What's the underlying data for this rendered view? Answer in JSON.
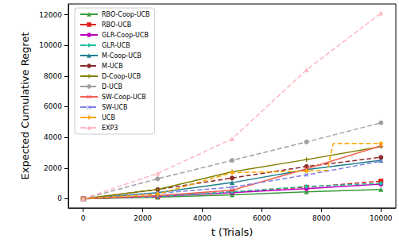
{
  "chart_data": {
    "type": "line",
    "x_label": "t (Trials)",
    "y_label": "Expected Cumulative Regret",
    "x": [
      0,
      2500,
      5000,
      7500,
      10000
    ],
    "xlim": [
      -500,
      10500
    ],
    "xticks": [
      0,
      2000,
      4000,
      6000,
      8000,
      10000
    ],
    "ylim": [
      -600,
      12700
    ],
    "yticks": [
      0,
      2000,
      4000,
      6000,
      8000,
      10000,
      12000
    ],
    "grid": false,
    "legend": "upper left",
    "series": [
      {
        "name": "RBO-Coop-UCB",
        "color": "#3a9a3a",
        "line_style": "solid",
        "marker": "triangle",
        "values": [
          0,
          100,
          250,
          450,
          600
        ]
      },
      {
        "name": "RBO-UCB",
        "color": "#e0201c",
        "line_style": "dashed",
        "marker": "square",
        "values": [
          0,
          150,
          450,
          750,
          1150
        ]
      },
      {
        "name": "GLR-Coop-UCB",
        "color": "#c000c0",
        "line_style": "solid",
        "marker": "circle",
        "values": [
          0,
          150,
          400,
          650,
          950
        ]
      },
      {
        "name": "GLR-UCB",
        "color": "#20c0a0",
        "line_style": "dashed",
        "marker": "diamond",
        "values": [
          0,
          150,
          450,
          800,
          1000
        ]
      },
      {
        "name": "M-Coop-UCB",
        "color": "#1f7f8f",
        "line_style": "solid",
        "marker": "triangle",
        "values": [
          0,
          400,
          1050,
          1900,
          2500
        ]
      },
      {
        "name": "M-UCB",
        "color": "#8b2a2a",
        "line_style": "dashed",
        "marker": "circle",
        "values": [
          0,
          600,
          1350,
          2100,
          2700
        ]
      },
      {
        "name": "D-Coop-UCB",
        "color": "#808000",
        "line_style": "solid",
        "marker": "plus",
        "values": [
          0,
          600,
          1750,
          2550,
          3400
        ]
      },
      {
        "name": "D-UCB",
        "color": "#a0a0a0",
        "line_style": "dashed",
        "marker": "circle",
        "values": [
          0,
          1300,
          2500,
          3700,
          4950
        ]
      },
      {
        "name": "SW-Coop-UCB",
        "color": "#f06050",
        "line_style": "solid",
        "marker": "x",
        "values": [
          0,
          200,
          550,
          1950,
          3450
        ]
      },
      {
        "name": "SW-UCB",
        "color": "#8080e0",
        "line_style": "dashed",
        "marker": "x",
        "values": [
          0,
          350,
          750,
          1550,
          2450
        ]
      },
      {
        "name": "UCB",
        "color": "#ffa500",
        "line_style": "dashed",
        "marker": "diamond",
        "x": [
          0,
          2500,
          5000,
          7500,
          8200,
          8400,
          10000
        ],
        "values": [
          0,
          300,
          1700,
          1800,
          1850,
          3600,
          3600
        ]
      },
      {
        "name": "EXP3",
        "color": "#ffb6c1",
        "line_style": "dashed",
        "marker": "triangle",
        "values": [
          0,
          1650,
          3900,
          8400,
          12100
        ]
      }
    ]
  }
}
